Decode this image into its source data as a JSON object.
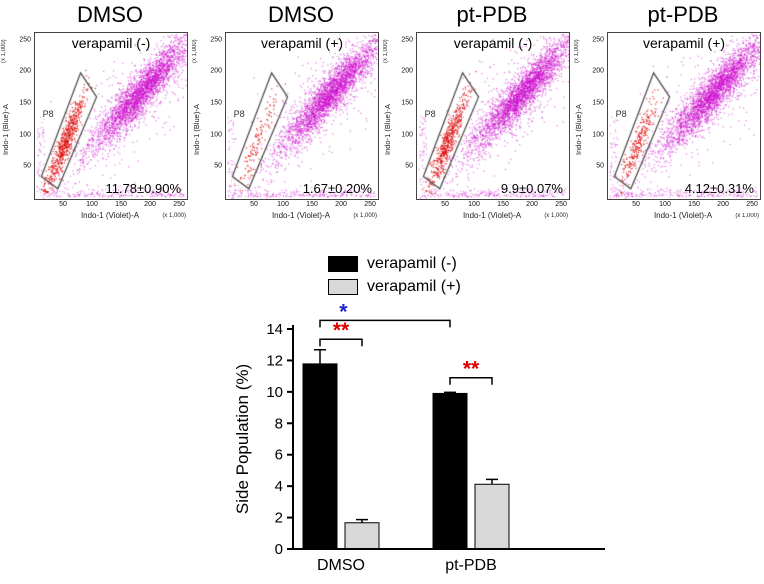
{
  "flow_row": {
    "panels": [
      {
        "title": "DMSO",
        "condition": "verapamil (-)",
        "gate_label": "P8",
        "percent": "11.78±0.90%"
      },
      {
        "title": "DMSO",
        "condition": "verapamil (+)",
        "gate_label": "P8",
        "percent": "1.67±0.20%"
      },
      {
        "title": "pt-PDB",
        "condition": "verapamil (-)",
        "gate_label": "P8",
        "percent": "9.9±0.07%"
      },
      {
        "title": "pt-PDB",
        "condition": "verapamil (+)",
        "gate_label": "P8",
        "percent": "4.12±0.31%"
      }
    ],
    "x_axis_label": "Indo-1 (Violet)-A",
    "y_axis_label": "Indo-1 (Blue)-A",
    "scale_note": "(x 1,000)",
    "x_ticks": [
      50,
      100,
      150,
      200,
      250
    ],
    "y_ticks": [
      50,
      100,
      150,
      200,
      250
    ],
    "axis_max": 262,
    "dot_color": "#cc00cc",
    "gate_dot_color": "#dd1111"
  },
  "chart_data": {
    "type": "bar",
    "categories": [
      "DMSO",
      "pt-PDB"
    ],
    "series": [
      {
        "name": "verapamil (-)",
        "color": "#000000",
        "values": [
          11.78,
          9.9
        ],
        "errors": [
          0.9,
          0.07
        ]
      },
      {
        "name": "verapamil (+)",
        "color": "#d9d9d9",
        "values": [
          1.67,
          4.12
        ],
        "errors": [
          0.2,
          0.31
        ]
      }
    ],
    "ylabel": "Side Population (%)",
    "ylim": [
      0,
      14
    ],
    "ytick_step": 2,
    "legend_position": "top",
    "significance": [
      {
        "label": "*",
        "color": "#2222cc",
        "group_a": 0,
        "series_a": 0,
        "group_b": 1,
        "series_b": 0,
        "y": 14.55,
        "label_align": "left"
      },
      {
        "label": "**",
        "color": "#dd0000",
        "group_a": 0,
        "series_a": 0,
        "group_b": 0,
        "series_b": 1,
        "y": 13.35,
        "label_align": "center"
      },
      {
        "label": "**",
        "color": "#dd0000",
        "group_a": 1,
        "series_a": 0,
        "group_b": 1,
        "series_b": 1,
        "y": 10.9,
        "label_align": "center"
      }
    ]
  }
}
